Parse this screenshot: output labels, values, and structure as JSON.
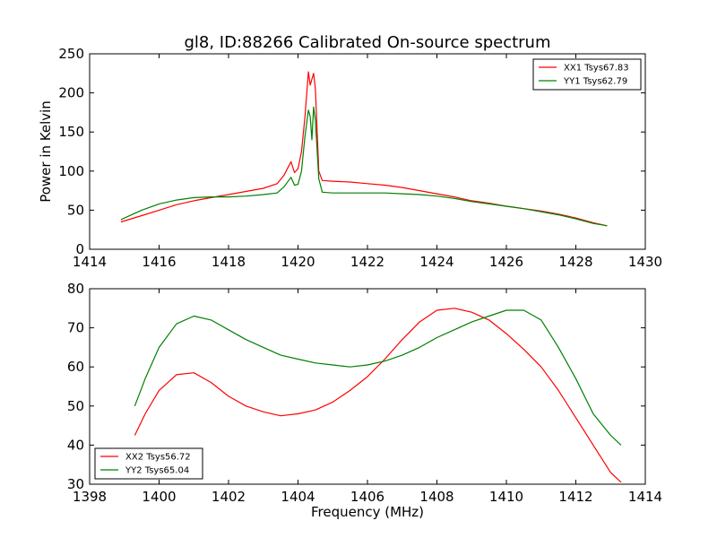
{
  "figure": {
    "title": "gl8, ID:88266 Calibrated On-source spectrum",
    "ylabel": "Power in Kelvin",
    "xlabel": "Frequency (MHz)"
  },
  "colors": {
    "XX": "#ff0000",
    "YY": "#008000"
  },
  "chart_data": [
    {
      "type": "line",
      "title": "gl8, ID:88266 Calibrated On-source spectrum",
      "ylabel": "Power in Kelvin",
      "xlabel": "",
      "xlim": [
        1414,
        1430
      ],
      "ylim": [
        0,
        250
      ],
      "xticks": [
        "1414",
        "1416",
        "1418",
        "1420",
        "1422",
        "1424",
        "1426",
        "1428",
        "1430"
      ],
      "yticks": [
        "0",
        "50",
        "100",
        "150",
        "200",
        "250"
      ],
      "legend_position": "top-right",
      "grid": false,
      "series": [
        {
          "name": "XX1 Tsys67.83",
          "color": "#ff0000",
          "x": [
            1414.9,
            1415.5,
            1416.0,
            1416.5,
            1417.0,
            1417.5,
            1418.0,
            1418.5,
            1419.0,
            1419.4,
            1419.6,
            1419.8,
            1419.9,
            1420.0,
            1420.1,
            1420.2,
            1420.3,
            1420.35,
            1420.45,
            1420.5,
            1420.6,
            1420.7,
            1421.0,
            1421.5,
            1422.0,
            1422.5,
            1423.0,
            1423.5,
            1424.0,
            1424.5,
            1425.0,
            1425.5,
            1426.0,
            1426.5,
            1427.0,
            1427.5,
            1428.0,
            1428.5,
            1428.9
          ],
          "y": [
            35,
            43,
            50,
            57,
            62,
            66,
            70,
            74,
            78,
            84,
            95,
            112,
            98,
            103,
            125,
            170,
            227,
            210,
            225,
            205,
            100,
            88,
            87,
            86,
            84,
            82,
            79,
            75,
            71,
            67,
            62,
            59,
            55,
            52,
            49,
            45,
            40,
            34,
            30
          ]
        },
        {
          "name": "YY1 Tsys62.79",
          "color": "#008000",
          "x": [
            1414.9,
            1415.5,
            1416.0,
            1416.5,
            1417.0,
            1417.5,
            1418.0,
            1418.5,
            1419.0,
            1419.4,
            1419.6,
            1419.8,
            1419.9,
            1420.0,
            1420.1,
            1420.2,
            1420.3,
            1420.35,
            1420.4,
            1420.45,
            1420.5,
            1420.6,
            1420.7,
            1421.0,
            1421.5,
            1422.0,
            1422.5,
            1423.0,
            1423.5,
            1424.0,
            1424.5,
            1425.0,
            1425.5,
            1426.0,
            1426.5,
            1427.0,
            1427.5,
            1428.0,
            1428.5,
            1428.9
          ],
          "y": [
            38,
            50,
            58,
            63,
            66,
            67,
            67,
            68,
            70,
            72,
            80,
            92,
            82,
            83,
            100,
            145,
            178,
            170,
            140,
            182,
            165,
            90,
            73,
            72,
            72,
            72,
            72,
            71,
            70,
            68,
            65,
            61,
            58,
            55,
            52,
            48,
            44,
            39,
            33,
            30
          ]
        }
      ]
    },
    {
      "type": "line",
      "title": "",
      "ylabel": "",
      "xlabel": "Frequency (MHz)",
      "xlim": [
        1398,
        1414
      ],
      "ylim": [
        30,
        80
      ],
      "xticks": [
        "1398",
        "1400",
        "1402",
        "1404",
        "1406",
        "1408",
        "1410",
        "1412",
        "1414"
      ],
      "yticks": [
        "30",
        "40",
        "50",
        "60",
        "70",
        "80"
      ],
      "legend_position": "bottom-left",
      "grid": false,
      "series": [
        {
          "name": "XX2 Tsys56.72",
          "color": "#ff0000",
          "x": [
            1399.3,
            1399.6,
            1400.0,
            1400.5,
            1401.0,
            1401.5,
            1402.0,
            1402.5,
            1403.0,
            1403.5,
            1404.0,
            1404.5,
            1405.0,
            1405.5,
            1406.0,
            1406.5,
            1407.0,
            1407.5,
            1408.0,
            1408.5,
            1409.0,
            1409.5,
            1410.0,
            1410.5,
            1411.0,
            1411.5,
            1412.0,
            1412.5,
            1413.0,
            1413.3
          ],
          "y": [
            42.5,
            48,
            54,
            58,
            58.5,
            56,
            52.5,
            50,
            48.5,
            47.5,
            48,
            49,
            51,
            54,
            57.5,
            62,
            67,
            71.5,
            74.5,
            75,
            74,
            72,
            68.5,
            64.5,
            60,
            54,
            47,
            40,
            33,
            30.5
          ]
        },
        {
          "name": "YY2 Tsys65.04",
          "color": "#008000",
          "x": [
            1399.3,
            1399.6,
            1400.0,
            1400.5,
            1401.0,
            1401.5,
            1402.0,
            1402.5,
            1403.0,
            1403.5,
            1404.0,
            1404.5,
            1405.0,
            1405.5,
            1406.0,
            1406.5,
            1407.0,
            1407.5,
            1408.0,
            1408.5,
            1409.0,
            1409.5,
            1410.0,
            1410.5,
            1411.0,
            1411.5,
            1412.0,
            1412.5,
            1413.0,
            1413.3
          ],
          "y": [
            50,
            57,
            65,
            71,
            73,
            72,
            69.5,
            67,
            65,
            63,
            62,
            61,
            60.5,
            60,
            60.5,
            61.5,
            63,
            65,
            67.5,
            69.5,
            71.5,
            73,
            74.5,
            74.5,
            72,
            65,
            57,
            48,
            42.5,
            40
          ]
        }
      ]
    }
  ]
}
